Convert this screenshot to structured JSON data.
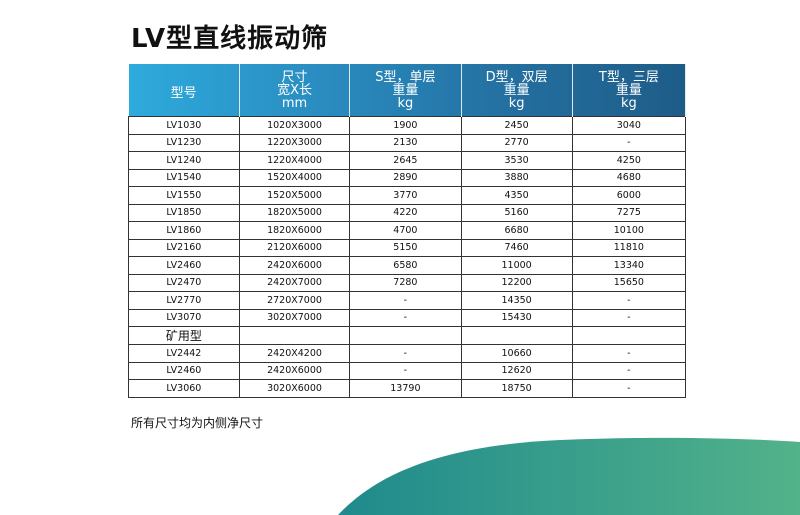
{
  "title": "LV型直线振动筛",
  "headers": [
    [
      "型号"
    ],
    [
      "尺寸",
      "宽X长",
      "mm"
    ],
    [
      "S型，单层",
      "重量",
      "kg"
    ],
    [
      "D型，双层",
      "重量",
      "kg"
    ],
    [
      "T型，三层",
      "重量",
      "kg"
    ]
  ],
  "rows": [
    [
      "LV1030",
      "1020X3000",
      "1900",
      "2450",
      "3040"
    ],
    [
      "LV1230",
      "1220X3000",
      "2130",
      "2770",
      "-"
    ],
    [
      "LV1240",
      "1220X4000",
      "2645",
      "3530",
      "4250"
    ],
    [
      "LV1540",
      "1520X4000",
      "2890",
      "3880",
      "4680"
    ],
    [
      "LV1550",
      "1520X5000",
      "3770",
      "4350",
      "6000"
    ],
    [
      "LV1850",
      "1820X5000",
      "4220",
      "5160",
      "7275"
    ],
    [
      "LV1860",
      "1820X6000",
      "4700",
      "6680",
      "10100"
    ],
    [
      "LV2160",
      "2120X6000",
      "5150",
      "7460",
      "11810"
    ],
    [
      "LV2460",
      "2420X6000",
      "6580",
      "11000",
      "13340"
    ],
    [
      "LV2470",
      "2420X7000",
      "7280",
      "12200",
      "15650"
    ],
    [
      "LV2770",
      "2720X7000",
      "-",
      "14350",
      "-"
    ],
    [
      "LV3070",
      "3020X7000",
      "-",
      "15430",
      "-"
    ],
    [
      "矿用型",
      "",
      "",
      "",
      ""
    ],
    [
      "LV2442",
      "2420X4200",
      "-",
      "10660",
      "-"
    ],
    [
      "LV2460",
      "2420X6000",
      "-",
      "12620",
      "-"
    ],
    [
      "LV3060",
      "3020X6000",
      "13790",
      "18750",
      "-"
    ]
  ],
  "note": "所有尺寸均为内侧净尺寸",
  "colors": {
    "header_start": "#2eaadc",
    "header_end": "#1e5c88",
    "swoosh_start": "#1f8f8f",
    "swoosh_end": "#4fb08a"
  }
}
